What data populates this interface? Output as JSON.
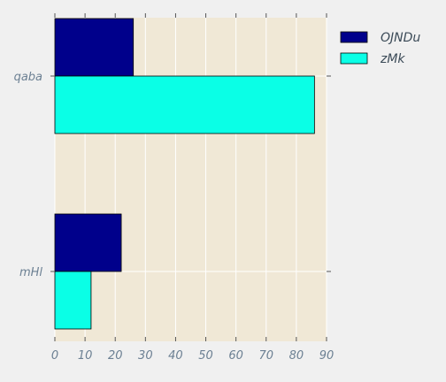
{
  "chart_data": {
    "type": "bar",
    "orientation": "horizontal",
    "categories": [
      "qaba",
      "mHl"
    ],
    "series": [
      {
        "name": "OJNDu",
        "values": [
          26,
          22
        ],
        "color": "#00008b"
      },
      {
        "name": "zMk",
        "values": [
          86,
          12
        ],
        "color": "#0affe6"
      }
    ],
    "xlim": [
      0,
      90
    ],
    "xticks": [
      0,
      10,
      20,
      30,
      40,
      50,
      60,
      70,
      80,
      90
    ],
    "grid": true,
    "legend_position": "top-right",
    "plot_background": "#f0e8d6",
    "title": "",
    "xlabel": "",
    "ylabel": ""
  }
}
